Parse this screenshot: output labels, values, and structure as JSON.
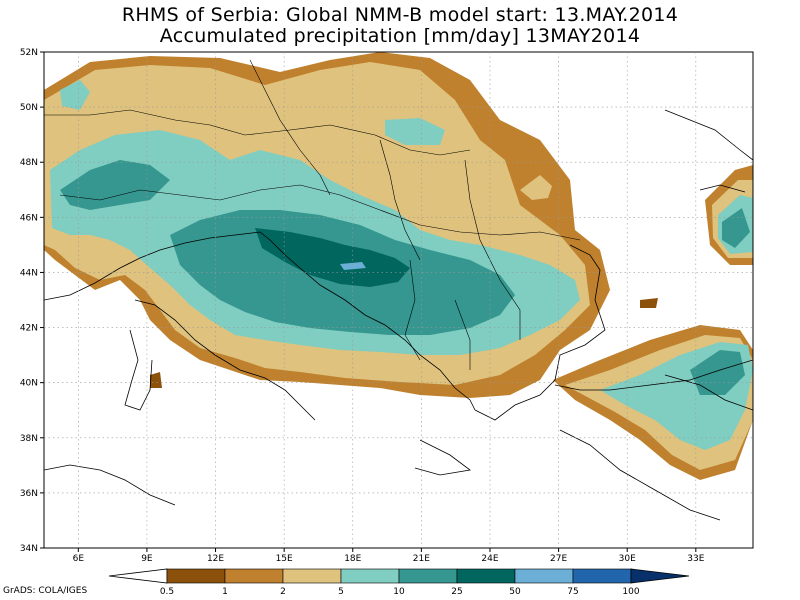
{
  "header": {
    "title_line1": "RHMS of Serbia: Global NMM-B model   start: 13.MAY.2014",
    "title_line2": "Accumulated precipitation [mm/day]  13MAY2014"
  },
  "map": {
    "lat_labels": [
      "52N",
      "50N",
      "48N",
      "46N",
      "44N",
      "42N",
      "40N",
      "38N",
      "36N",
      "34N"
    ],
    "lon_labels": [
      "6E",
      "9E",
      "12E",
      "15E",
      "18E",
      "21E",
      "24E",
      "27E",
      "30E",
      "33E"
    ]
  },
  "legend": {
    "levels": [
      "0.5",
      "1",
      "2",
      "5",
      "10",
      "25",
      "50",
      "75",
      "100"
    ],
    "colors": [
      "#ffffff",
      "#8c510a",
      "#bf812d",
      "#dfc27d",
      "#80cdc1",
      "#35978f",
      "#01665e",
      "#6baed6",
      "#2166ac",
      "#08306b"
    ]
  },
  "footer": {
    "credit": "GrADS: COLA/IGES"
  }
}
